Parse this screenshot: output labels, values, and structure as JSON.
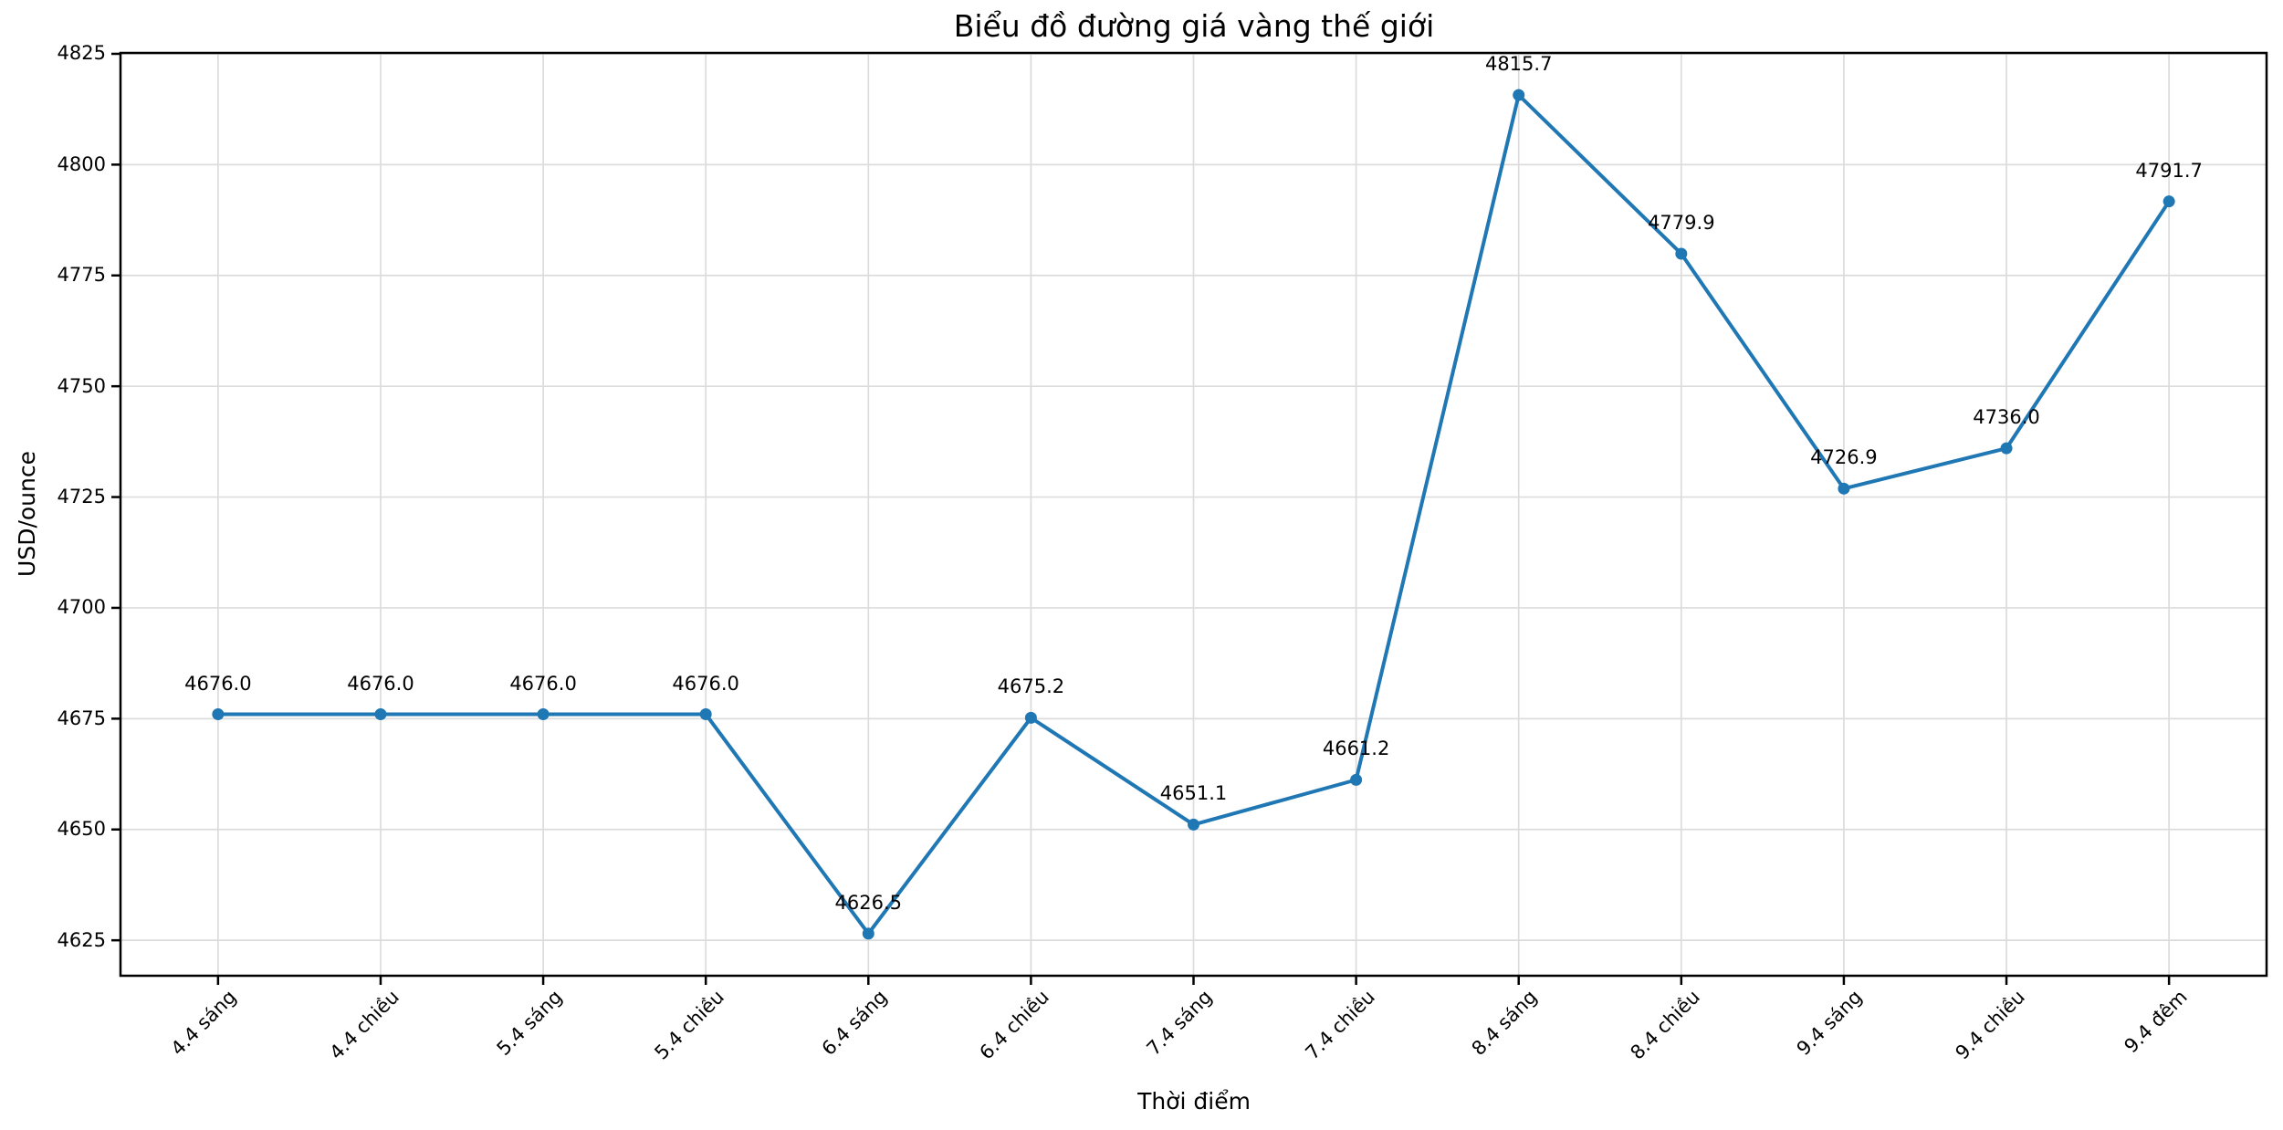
{
  "figure": {
    "background": "#ffffff",
    "text_color": "#000000"
  },
  "chart_data": {
    "type": "line",
    "title": "Biểu đồ đường giá vàng thế giới",
    "xlabel": "Thời điểm",
    "ylabel": "USD/ounce",
    "categories": [
      "4.4 sáng",
      "4.4 chiều",
      "5.4 sáng",
      "5.4 chiều",
      "6.4 sáng",
      "6.4 chiều",
      "7.4 sáng",
      "7.4 chiều",
      "8.4 sáng",
      "8.4 chiều",
      "9.4 sáng",
      "9.4 chiều",
      "9.4 đêm"
    ],
    "series": [
      {
        "name": "Giá vàng thế giới",
        "values": [
          4676.0,
          4676.0,
          4676.0,
          4676.0,
          4626.5,
          4675.2,
          4651.1,
          4661.2,
          4815.7,
          4779.9,
          4726.9,
          4736.0,
          4791.7
        ],
        "point_labels": [
          "4676.0",
          "4676.0",
          "4676.0",
          "4676.0",
          "4626.5",
          "4675.2",
          "4651.1",
          "4661.2",
          "4815.7",
          "4779.9",
          "4726.9",
          "4736.0",
          "4791.7"
        ],
        "color": "#1f77b4"
      }
    ],
    "y_ticks": [
      4625,
      4650,
      4675,
      4700,
      4725,
      4750,
      4775,
      4800,
      4825
    ],
    "ylim": [
      4617.0,
      4825.2
    ],
    "xlim": [
      -0.6,
      12.6
    ],
    "grid": true,
    "grid_color": "#dcdcdc",
    "spine_color": "#000000",
    "legend_position": "none",
    "marker": "circle"
  }
}
